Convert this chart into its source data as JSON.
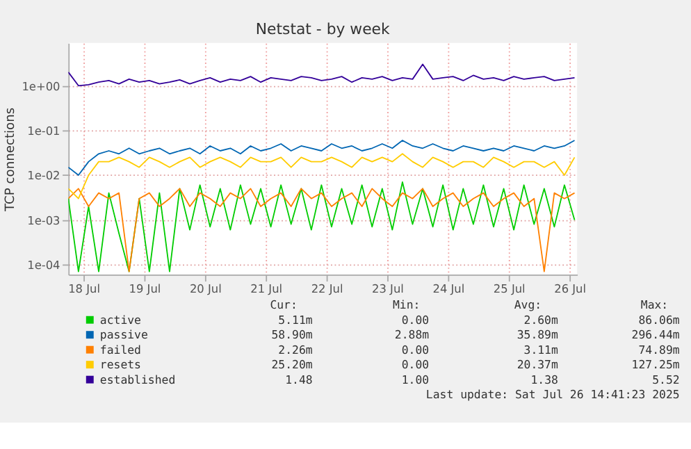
{
  "chart_data": {
    "type": "line",
    "title": "Netstat - by week",
    "ylabel": "TCP connections",
    "x": [
      "2025-07-17T18:00",
      "2025-07-17T22:00",
      "2025-07-18T02:00",
      "2025-07-18T06:00",
      "2025-07-18T10:00",
      "2025-07-18T14:00",
      "2025-07-18T18:00",
      "2025-07-18T22:00",
      "2025-07-19T02:00",
      "2025-07-19T06:00",
      "2025-07-19T10:00",
      "2025-07-19T14:00",
      "2025-07-19T18:00",
      "2025-07-19T22:00",
      "2025-07-20T02:00",
      "2025-07-20T06:00",
      "2025-07-20T10:00",
      "2025-07-20T14:00",
      "2025-07-20T18:00",
      "2025-07-20T22:00",
      "2025-07-21T02:00",
      "2025-07-21T06:00",
      "2025-07-21T10:00",
      "2025-07-21T14:00",
      "2025-07-21T18:00",
      "2025-07-21T22:00",
      "2025-07-22T02:00",
      "2025-07-22T06:00",
      "2025-07-22T10:00",
      "2025-07-22T14:00",
      "2025-07-22T18:00",
      "2025-07-22T22:00",
      "2025-07-23T02:00",
      "2025-07-23T06:00",
      "2025-07-23T10:00",
      "2025-07-23T14:00",
      "2025-07-23T18:00",
      "2025-07-23T22:00",
      "2025-07-24T02:00",
      "2025-07-24T06:00",
      "2025-07-24T10:00",
      "2025-07-24T14:00",
      "2025-07-24T18:00",
      "2025-07-24T22:00",
      "2025-07-25T02:00",
      "2025-07-25T06:00",
      "2025-07-25T10:00",
      "2025-07-25T14:00",
      "2025-07-25T18:00",
      "2025-07-25T22:00",
      "2025-07-26T02:00"
    ],
    "series": [
      {
        "name": "active",
        "color": "#00cc00",
        "values": [
          0.003,
          7e-05,
          0.002,
          7e-05,
          0.004,
          0.0005,
          7e-05,
          0.003,
          7e-05,
          0.004,
          7e-05,
          0.005,
          0.0006,
          0.006,
          0.0007,
          0.005,
          0.0006,
          0.006,
          0.0008,
          0.005,
          0.0007,
          0.006,
          0.0008,
          0.005,
          0.0006,
          0.006,
          0.0007,
          0.005,
          0.0008,
          0.006,
          0.0007,
          0.005,
          0.0006,
          0.007,
          0.0008,
          0.005,
          0.0007,
          0.006,
          0.0006,
          0.005,
          0.0008,
          0.006,
          0.0007,
          0.005,
          0.0006,
          0.006,
          0.0008,
          0.005,
          0.0007,
          0.006,
          0.001
        ]
      },
      {
        "name": "passive",
        "color": "#0066b3",
        "values": [
          0.015,
          0.01,
          0.02,
          0.03,
          0.035,
          0.03,
          0.04,
          0.03,
          0.035,
          0.04,
          0.03,
          0.035,
          0.04,
          0.03,
          0.045,
          0.035,
          0.04,
          0.03,
          0.045,
          0.035,
          0.04,
          0.05,
          0.035,
          0.045,
          0.04,
          0.035,
          0.05,
          0.04,
          0.045,
          0.035,
          0.04,
          0.05,
          0.04,
          0.06,
          0.045,
          0.04,
          0.05,
          0.04,
          0.035,
          0.045,
          0.04,
          0.035,
          0.04,
          0.035,
          0.045,
          0.04,
          0.035,
          0.045,
          0.04,
          0.045,
          0.06
        ]
      },
      {
        "name": "failed",
        "color": "#ff8000",
        "values": [
          0.003,
          0.005,
          0.002,
          0.004,
          0.003,
          0.004,
          7e-05,
          0.003,
          0.004,
          0.002,
          0.003,
          0.005,
          0.002,
          0.004,
          0.003,
          0.002,
          0.004,
          0.003,
          0.005,
          0.002,
          0.003,
          0.004,
          0.002,
          0.005,
          0.003,
          0.004,
          0.002,
          0.003,
          0.004,
          0.002,
          0.005,
          0.003,
          0.002,
          0.004,
          0.003,
          0.005,
          0.002,
          0.003,
          0.004,
          0.002,
          0.003,
          0.004,
          0.002,
          0.003,
          0.004,
          0.002,
          0.003,
          7e-05,
          0.004,
          0.003,
          0.004
        ]
      },
      {
        "name": "resets",
        "color": "#ffcc00",
        "values": [
          0.005,
          0.003,
          0.01,
          0.02,
          0.02,
          0.025,
          0.02,
          0.015,
          0.025,
          0.02,
          0.015,
          0.02,
          0.025,
          0.015,
          0.02,
          0.025,
          0.02,
          0.015,
          0.025,
          0.02,
          0.02,
          0.025,
          0.015,
          0.025,
          0.02,
          0.02,
          0.025,
          0.02,
          0.015,
          0.025,
          0.02,
          0.025,
          0.02,
          0.03,
          0.02,
          0.015,
          0.025,
          0.02,
          0.015,
          0.02,
          0.02,
          0.015,
          0.025,
          0.02,
          0.015,
          0.02,
          0.02,
          0.015,
          0.02,
          0.01,
          0.025
        ]
      },
      {
        "name": "established",
        "color": "#330099",
        "values": [
          2.0,
          1.0,
          1.05,
          1.2,
          1.3,
          1.1,
          1.4,
          1.2,
          1.3,
          1.1,
          1.2,
          1.35,
          1.1,
          1.3,
          1.5,
          1.2,
          1.4,
          1.3,
          1.6,
          1.2,
          1.5,
          1.4,
          1.3,
          1.6,
          1.5,
          1.3,
          1.4,
          1.6,
          1.2,
          1.5,
          1.4,
          1.6,
          1.3,
          1.5,
          1.4,
          3.0,
          1.4,
          1.5,
          1.6,
          1.3,
          1.7,
          1.4,
          1.5,
          1.3,
          1.6,
          1.4,
          1.5,
          1.6,
          1.3,
          1.4,
          1.5
        ]
      }
    ],
    "log": true,
    "ylim": [
      6e-05,
      9
    ],
    "yticks": [
      {
        "value": 0.0001,
        "label": "1e-04"
      },
      {
        "value": 0.001,
        "label": "1e-03"
      },
      {
        "value": 0.01,
        "label": "1e-02"
      },
      {
        "value": 0.1,
        "label": "1e-01"
      },
      {
        "value": 1,
        "label": "1e+00"
      }
    ],
    "xlim": [
      "2025-07-17T18:00",
      "2025-07-26T03:00"
    ],
    "xticks": [
      {
        "value": "2025-07-18",
        "label": "18 Jul"
      },
      {
        "value": "2025-07-19",
        "label": "19 Jul"
      },
      {
        "value": "2025-07-20",
        "label": "20 Jul"
      },
      {
        "value": "2025-07-21",
        "label": "21 Jul"
      },
      {
        "value": "2025-07-22",
        "label": "22 Jul"
      },
      {
        "value": "2025-07-23",
        "label": "23 Jul"
      },
      {
        "value": "2025-07-24",
        "label": "24 Jul"
      },
      {
        "value": "2025-07-25",
        "label": "25 Jul"
      },
      {
        "value": "2025-07-26",
        "label": "26 Jul"
      }
    ],
    "grid": true,
    "legend": "bottom",
    "annotations": [
      "Cur:",
      "Min:",
      "Avg:",
      "Max:",
      "5.11m",
      "0.00",
      "2.60m",
      "86.06m",
      "58.90m",
      "2.88m",
      "35.89m",
      "296.44m",
      "2.26m",
      "0.00",
      "3.11m",
      "74.89m",
      "25.20m",
      "0.00",
      "20.37m",
      "127.25m",
      "1.48",
      "1.00",
      "1.38",
      "5.52",
      "Last update: Sat Jul 26 14:41:23 2025"
    ]
  }
}
